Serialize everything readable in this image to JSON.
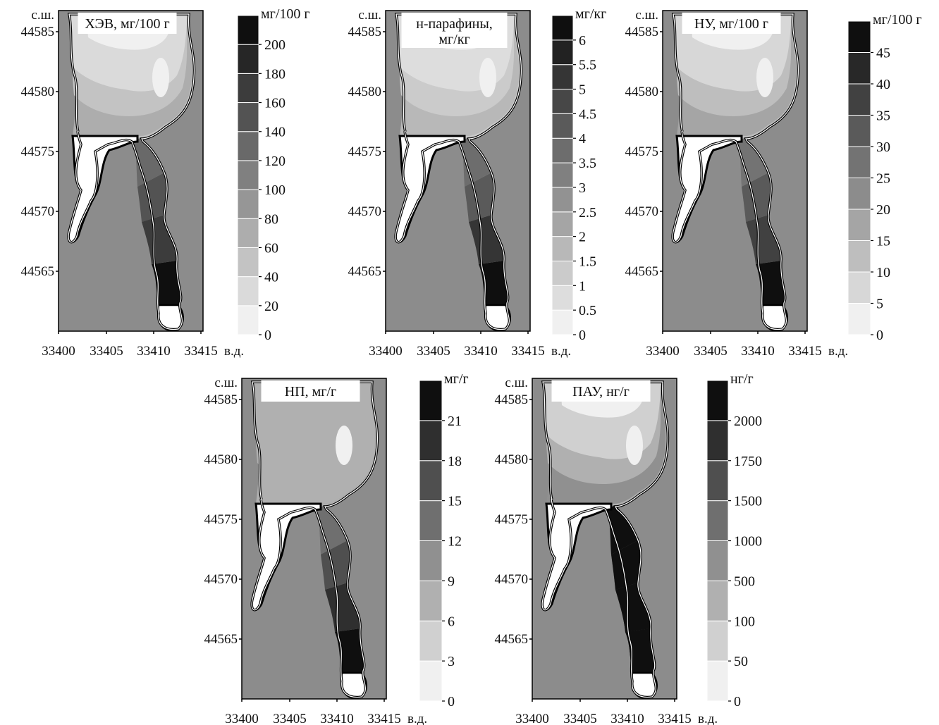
{
  "shared": {
    "lat_label": "с.ш.",
    "lon_label": "в.д.",
    "y_ticks": [
      "44585",
      "44580",
      "44575",
      "44570",
      "44565"
    ],
    "x_ticks": [
      "33400",
      "33405",
      "33410",
      "33415"
    ]
  },
  "maps": [
    {
      "id": "hev",
      "title_lines": [
        "ХЭВ, мг/100 г"
      ],
      "legend_unit": "мг/100 г",
      "legend_levels": [
        "0",
        "20",
        "40",
        "60",
        "80",
        "100",
        "120",
        "140",
        "160",
        "180",
        "200"
      ]
    },
    {
      "id": "n-paraffins",
      "title_lines": [
        "н-парафины,",
        "мг/кг"
      ],
      "legend_unit": "мг/кг",
      "legend_levels": [
        "0",
        "0.5",
        "1",
        "1.5",
        "2",
        "2.5",
        "3",
        "3.5",
        "4",
        "4.5",
        "5",
        "5.5",
        "6"
      ]
    },
    {
      "id": "nu",
      "title_lines": [
        "НУ, мг/100 г"
      ],
      "legend_unit": "мг/100 г",
      "legend_levels": [
        "0",
        "5",
        "10",
        "15",
        "20",
        "25",
        "30",
        "35",
        "40",
        "45"
      ]
    },
    {
      "id": "np",
      "title_lines": [
        "НП, мг/г"
      ],
      "legend_unit": "мг/г",
      "legend_levels": [
        "0",
        "3",
        "6",
        "9",
        "12",
        "15",
        "18",
        "21"
      ]
    },
    {
      "id": "pau",
      "title_lines": [
        "ПАУ, нг/г"
      ],
      "legend_unit": "нг/г",
      "legend_levels": [
        "0",
        "50",
        "100",
        "500",
        "1000",
        "1500",
        "1750",
        "2000"
      ]
    }
  ]
}
